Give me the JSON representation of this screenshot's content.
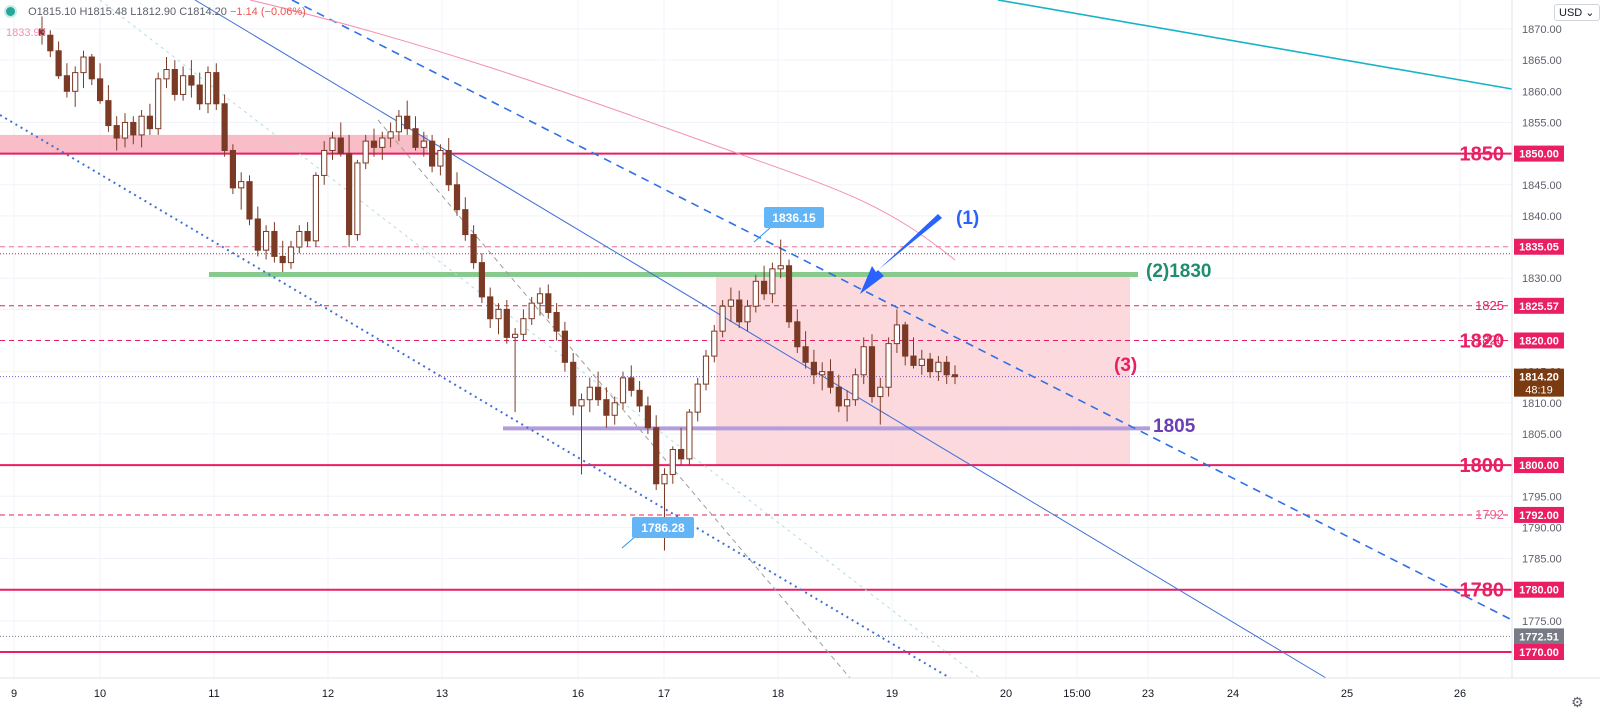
{
  "header": {
    "open": "O1815.10",
    "high": "H1815.48",
    "low": "L1812.90",
    "close": "C1814.20",
    "change": "−1.14 (−0.06%)",
    "prev_value": "1833.93",
    "currency": "USD ⌄",
    "settings_icon": "gear-icon"
  },
  "colors": {
    "up": "#ffffff",
    "down": "#7b3a25",
    "level": "#e91e63",
    "zone": "#f8b6c2",
    "support_1830": "#88c98e",
    "support_1805": "#b39ddb",
    "channel": "#3f6fd8",
    "dashed_channel": "#2f6fe8",
    "ma": "#f48fb1",
    "teal": "#17b3c6"
  },
  "chart_data": {
    "type": "candlestick",
    "x_ticks": [
      "9",
      "10",
      "11",
      "12",
      "13",
      "16",
      "17",
      "18",
      "19",
      "20",
      "15:00",
      "23",
      "24",
      "25",
      "26"
    ],
    "y_ticks": [
      "1870.00",
      "1865.00",
      "1860.00",
      "1855.00",
      "1850.00",
      "1845.00",
      "1840.00",
      "1835.00",
      "1830.00",
      "1825.00",
      "1820.00",
      "1815.00",
      "1810.00",
      "1805.00",
      "1800.00",
      "1795.00",
      "1790.00",
      "1785.00",
      "1780.00",
      "1775.00",
      "1770.00"
    ],
    "ylim": [
      1766,
      1875
    ],
    "last_price": {
      "value": 1814.2,
      "label": "1814.20",
      "countdown": "48:19"
    },
    "levels": [
      {
        "value": 1850,
        "label": "1850",
        "axis_label": "1850.00",
        "style": "solid"
      },
      {
        "value": 1835.05,
        "axis_label": "1835.05",
        "style": "dashed"
      },
      {
        "value": 1825.57,
        "label": "1825",
        "axis_label": "1825.57",
        "style": "dashed"
      },
      {
        "value": 1820,
        "label": "1820",
        "axis_label": "1820.00",
        "style": "dashed"
      },
      {
        "value": 1800,
        "label": "1800",
        "axis_label": "1800.00",
        "style": "solid"
      },
      {
        "value": 1792,
        "label": "1792",
        "axis_label": "1792.00",
        "style": "dashed"
      },
      {
        "value": 1780,
        "label": "1780",
        "axis_label": "1780.00",
        "style": "solid"
      },
      {
        "value": 1772.51,
        "axis_label": "1772.51",
        "style": "dotted"
      },
      {
        "value": 1770,
        "axis_label": "1770.00",
        "style": "solid"
      }
    ],
    "annotations": [
      {
        "label": "(1)"
      },
      {
        "label": "(2)1830"
      },
      {
        "label": "(3)"
      },
      {
        "label": "1805"
      },
      {
        "label": "1836.15"
      },
      {
        "label": "1786.28"
      }
    ],
    "candles": [
      [
        1870.0,
        1872.0,
        1867.5,
        1869.0
      ],
      [
        1869.0,
        1869.8,
        1865.5,
        1866.5
      ],
      [
        1866.5,
        1868.0,
        1862.0,
        1862.5
      ],
      [
        1862.5,
        1864.5,
        1859.0,
        1860.0
      ],
      [
        1860.0,
        1864.0,
        1857.5,
        1863.0
      ],
      [
        1863.0,
        1866.5,
        1860.5,
        1865.5
      ],
      [
        1865.5,
        1866.0,
        1861.0,
        1862.0
      ],
      [
        1862.0,
        1864.5,
        1858.0,
        1858.5
      ],
      [
        1858.5,
        1861.0,
        1853.5,
        1854.5
      ],
      [
        1854.5,
        1856.0,
        1850.5,
        1852.5
      ],
      [
        1852.5,
        1856.5,
        1851.0,
        1855.0
      ],
      [
        1855.0,
        1856.0,
        1851.5,
        1853.0
      ],
      [
        1853.0,
        1857.0,
        1851.0,
        1856.0
      ],
      [
        1856.0,
        1858.0,
        1853.0,
        1854.0
      ],
      [
        1854.0,
        1863.0,
        1853.0,
        1862.0
      ],
      [
        1862.0,
        1865.5,
        1860.5,
        1863.5
      ],
      [
        1863.5,
        1865.0,
        1858.5,
        1859.5
      ],
      [
        1859.5,
        1864.0,
        1858.5,
        1862.5
      ],
      [
        1862.5,
        1865.0,
        1859.0,
        1861.0
      ],
      [
        1861.0,
        1863.0,
        1857.0,
        1858.0
      ],
      [
        1858.0,
        1864.0,
        1856.5,
        1863.0
      ],
      [
        1863.0,
        1864.5,
        1857.0,
        1858.0
      ],
      [
        1858.0,
        1859.5,
        1849.5,
        1850.5
      ],
      [
        1850.5,
        1851.5,
        1843.5,
        1844.5
      ],
      [
        1844.5,
        1847.0,
        1841.0,
        1845.5
      ],
      [
        1845.5,
        1846.5,
        1838.5,
        1839.5
      ],
      [
        1839.5,
        1841.5,
        1833.5,
        1834.5
      ],
      [
        1834.5,
        1838.5,
        1833.0,
        1837.5
      ],
      [
        1837.5,
        1839.0,
        1832.5,
        1833.5
      ],
      [
        1833.5,
        1836.0,
        1831.0,
        1832.5
      ],
      [
        1832.5,
        1836.0,
        1831.5,
        1835.0
      ],
      [
        1835.0,
        1838.5,
        1834.0,
        1837.5
      ],
      [
        1837.5,
        1839.0,
        1835.0,
        1836.0
      ],
      [
        1836.0,
        1847.0,
        1835.0,
        1846.5
      ],
      [
        1846.5,
        1852.0,
        1845.0,
        1850.5
      ],
      [
        1850.5,
        1853.5,
        1849.0,
        1852.5
      ],
      [
        1852.5,
        1855.0,
        1849.5,
        1850.0
      ],
      [
        1850.0,
        1853.0,
        1835.0,
        1837.0
      ],
      [
        1837.0,
        1849.0,
        1836.0,
        1848.5
      ],
      [
        1848.5,
        1853.0,
        1847.5,
        1852.0
      ],
      [
        1852.0,
        1854.0,
        1849.5,
        1851.0
      ],
      [
        1851.0,
        1853.5,
        1849.0,
        1852.5
      ],
      [
        1852.5,
        1855.0,
        1851.0,
        1853.5
      ],
      [
        1853.5,
        1857.0,
        1852.0,
        1856.0
      ],
      [
        1856.0,
        1858.5,
        1853.0,
        1854.0
      ],
      [
        1854.0,
        1856.0,
        1850.5,
        1851.0
      ],
      [
        1851.0,
        1853.5,
        1849.5,
        1852.0
      ],
      [
        1852.0,
        1853.0,
        1847.0,
        1848.0
      ],
      [
        1848.0,
        1851.5,
        1846.5,
        1850.5
      ],
      [
        1850.5,
        1852.5,
        1844.0,
        1845.0
      ],
      [
        1845.0,
        1847.0,
        1840.0,
        1841.0
      ],
      [
        1841.0,
        1843.0,
        1836.0,
        1837.0
      ],
      [
        1837.0,
        1838.5,
        1831.5,
        1832.5
      ],
      [
        1832.5,
        1834.0,
        1826.0,
        1827.0
      ],
      [
        1827.0,
        1828.5,
        1822.0,
        1823.5
      ],
      [
        1823.5,
        1826.0,
        1821.0,
        1825.0
      ],
      [
        1825.0,
        1826.5,
        1819.5,
        1820.5
      ],
      [
        1820.5,
        1822.0,
        1808.5,
        1821.0
      ],
      [
        1821.0,
        1825.0,
        1820.0,
        1823.5
      ],
      [
        1823.5,
        1827.0,
        1822.5,
        1826.0
      ],
      [
        1826.0,
        1828.5,
        1824.0,
        1827.5
      ],
      [
        1827.5,
        1829.0,
        1823.5,
        1824.5
      ],
      [
        1824.5,
        1826.0,
        1820.0,
        1821.5
      ],
      [
        1821.5,
        1823.0,
        1815.0,
        1816.5
      ],
      [
        1816.5,
        1818.0,
        1808.0,
        1809.5
      ],
      [
        1809.5,
        1811.5,
        1798.5,
        1810.5
      ],
      [
        1810.5,
        1814.0,
        1808.5,
        1812.5
      ],
      [
        1812.5,
        1815.0,
        1809.5,
        1810.5
      ],
      [
        1810.5,
        1812.5,
        1806.0,
        1808.0
      ],
      [
        1808.0,
        1811.0,
        1806.5,
        1810.0
      ],
      [
        1810.0,
        1815.0,
        1809.0,
        1814.0
      ],
      [
        1814.0,
        1816.0,
        1811.0,
        1812.0
      ],
      [
        1812.0,
        1813.5,
        1808.5,
        1809.5
      ],
      [
        1809.5,
        1811.0,
        1805.0,
        1806.0
      ],
      [
        1806.0,
        1808.0,
        1796.0,
        1797.0
      ],
      [
        1797.0,
        1799.5,
        1786.3,
        1798.5
      ],
      [
        1798.5,
        1803.0,
        1797.0,
        1802.5
      ],
      [
        1802.5,
        1806.0,
        1800.0,
        1801.0
      ],
      [
        1801.0,
        1809.0,
        1800.0,
        1808.5
      ],
      [
        1808.5,
        1814.0,
        1807.0,
        1813.0
      ],
      [
        1813.0,
        1818.5,
        1812.0,
        1817.5
      ],
      [
        1817.5,
        1822.5,
        1816.5,
        1821.5
      ],
      [
        1821.5,
        1826.5,
        1820.5,
        1825.5
      ],
      [
        1825.5,
        1828.5,
        1823.0,
        1826.5
      ],
      [
        1826.5,
        1828.0,
        1822.0,
        1823.0
      ],
      [
        1823.0,
        1826.5,
        1821.5,
        1825.5
      ],
      [
        1825.5,
        1830.5,
        1824.5,
        1829.5
      ],
      [
        1829.5,
        1832.0,
        1826.5,
        1827.5
      ],
      [
        1827.5,
        1832.5,
        1826.0,
        1831.5
      ],
      [
        1831.5,
        1836.2,
        1830.0,
        1832.0
      ],
      [
        1832.0,
        1833.0,
        1822.0,
        1823.0
      ],
      [
        1823.0,
        1825.0,
        1818.0,
        1819.0
      ],
      [
        1819.0,
        1821.5,
        1815.5,
        1816.5
      ],
      [
        1816.5,
        1818.5,
        1813.0,
        1814.5
      ],
      [
        1814.5,
        1816.5,
        1812.0,
        1815.0
      ],
      [
        1815.0,
        1817.0,
        1811.5,
        1812.5
      ],
      [
        1812.5,
        1814.5,
        1808.5,
        1809.5
      ],
      [
        1809.5,
        1812.0,
        1807.0,
        1810.5
      ],
      [
        1810.5,
        1815.5,
        1809.5,
        1814.5
      ],
      [
        1814.5,
        1820.5,
        1813.0,
        1819.0
      ],
      [
        1819.0,
        1821.0,
        1810.0,
        1811.0
      ],
      [
        1811.0,
        1814.0,
        1806.5,
        1812.5
      ],
      [
        1812.5,
        1820.5,
        1811.0,
        1819.5
      ],
      [
        1819.5,
        1825.0,
        1818.0,
        1822.5
      ],
      [
        1822.5,
        1823.0,
        1816.0,
        1817.5
      ],
      [
        1817.5,
        1820.5,
        1815.5,
        1816.0
      ],
      [
        1816.0,
        1818.5,
        1814.5,
        1817.0
      ],
      [
        1817.0,
        1818.0,
        1814.0,
        1815.0
      ],
      [
        1815.0,
        1817.5,
        1813.5,
        1816.5
      ],
      [
        1816.5,
        1817.5,
        1813.0,
        1814.5
      ],
      [
        1814.5,
        1816.0,
        1813.0,
        1814.2
      ]
    ]
  }
}
